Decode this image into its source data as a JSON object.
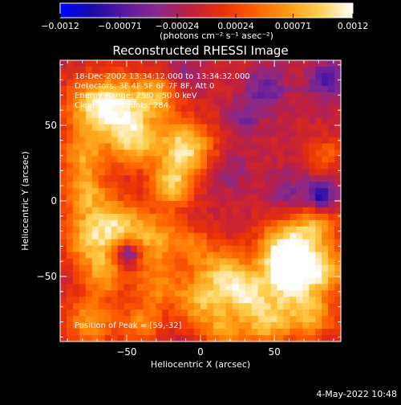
{
  "chart_data": {
    "type": "heatmap",
    "title": "Reconstructed RHESSI Image",
    "xlabel": "Heliocentric X (arcsec)",
    "ylabel": "Heliocentric Y (arcsec)",
    "xlim": [
      -95,
      95
    ],
    "ylim": [
      -93,
      93
    ],
    "x_ticks": [
      {
        "value": -50,
        "label": "−50"
      },
      {
        "value": 0,
        "label": "0"
      },
      {
        "value": 50,
        "label": "50"
      }
    ],
    "y_ticks": [
      {
        "value": -50,
        "label": "−50"
      },
      {
        "value": 0,
        "label": "0"
      },
      {
        "value": 50,
        "label": "50"
      }
    ],
    "colorbar": {
      "range": [
        -0.0012,
        0.0012
      ],
      "tick_labels": [
        "−0.0012",
        "−0.00071",
        "−0.00024",
        "0.00024",
        "0.00071",
        "0.0012"
      ],
      "tick_values": [
        -0.0012,
        -0.00071,
        -0.00024,
        0.00024,
        0.00071,
        0.0012
      ],
      "units": "(photons cm⁻² s⁻¹ asec⁻²)",
      "colors": [
        "#0000ff",
        "#1a0aa8",
        "#5a1aa0",
        "#8a2a8a",
        "#c02040",
        "#e83008",
        "#ff6000",
        "#ff9a10",
        "#ffd050",
        "#ffffff"
      ]
    },
    "annotations": [
      "18-Dec-2002 13:34:12.000 to 13:34:32.000",
      "Detectors: 3F 4F 5F 6F 7F 8F, Att 0",
      "Energy Range: 25.0 - 50.0 keV",
      "Clean     Total counts: 284."
    ],
    "peak_label": "Position of Peak = [59,-32]",
    "peak": [
      59,
      -32
    ],
    "blobs": [
      {
        "x": -72,
        "y": 62,
        "r": 14,
        "v": 0.00095
      },
      {
        "x": -50,
        "y": 62,
        "r": 14,
        "v": 0.0008
      },
      {
        "x": -28,
        "y": 70,
        "r": 10,
        "v": 0.00065
      },
      {
        "x": -10,
        "y": 35,
        "r": 13,
        "v": 0.0011
      },
      {
        "x": -45,
        "y": 38,
        "r": 12,
        "v": 0.00085
      },
      {
        "x": -80,
        "y": 30,
        "r": 11,
        "v": 0.0007
      },
      {
        "x": -78,
        "y": 5,
        "r": 11,
        "v": 0.00075
      },
      {
        "x": -20,
        "y": 10,
        "r": 10,
        "v": 0.0009
      },
      {
        "x": -75,
        "y": -25,
        "r": 13,
        "v": 0.00085
      },
      {
        "x": -55,
        "y": -15,
        "r": 12,
        "v": 0.0008
      },
      {
        "x": -30,
        "y": -25,
        "r": 12,
        "v": 0.00075
      },
      {
        "x": -65,
        "y": -48,
        "r": 10,
        "v": 0.0007
      },
      {
        "x": -30,
        "y": -55,
        "r": 12,
        "v": 0.0006
      },
      {
        "x": -75,
        "y": -80,
        "r": 12,
        "v": 0.00075
      },
      {
        "x": -40,
        "y": -82,
        "r": 10,
        "v": 0.0006
      },
      {
        "x": 0,
        "y": -65,
        "r": 12,
        "v": 0.00085
      },
      {
        "x": 15,
        "y": -45,
        "r": 11,
        "v": 0.00075
      },
      {
        "x": 30,
        "y": -60,
        "r": 11,
        "v": 0.0009
      },
      {
        "x": 59,
        "y": -32,
        "r": 14,
        "v": 0.0012
      },
      {
        "x": 60,
        "y": -50,
        "r": 12,
        "v": 0.0011
      },
      {
        "x": 45,
        "y": -80,
        "r": 12,
        "v": 0.0009
      },
      {
        "x": 75,
        "y": -75,
        "r": 12,
        "v": 0.0008
      },
      {
        "x": 85,
        "y": -45,
        "r": 10,
        "v": 0.00085
      },
      {
        "x": 80,
        "y": -15,
        "r": 10,
        "v": 0.0007
      },
      {
        "x": 15,
        "y": -85,
        "r": 10,
        "v": 0.00065
      },
      {
        "x": -5,
        "y": -30,
        "r": 9,
        "v": 0.0005
      },
      {
        "x": 85,
        "y": 30,
        "r": 8,
        "v": 0.00045
      },
      {
        "x": 30,
        "y": 55,
        "r": 8,
        "v": -0.0004
      },
      {
        "x": 60,
        "y": 5,
        "r": 10,
        "v": -0.0004
      },
      {
        "x": 85,
        "y": 80,
        "r": 9,
        "v": -0.0006
      },
      {
        "x": 82,
        "y": 2,
        "r": 7,
        "v": -0.0009
      },
      {
        "x": -50,
        "y": -35,
        "r": 6,
        "v": -0.0009
      },
      {
        "x": 20,
        "y": 20,
        "r": 9,
        "v": -0.0003
      },
      {
        "x": 45,
        "y": 75,
        "r": 10,
        "v": -0.0005
      },
      {
        "x": -10,
        "y": 85,
        "r": 8,
        "v": -0.0003
      }
    ]
  },
  "footer": {
    "timestamp": "4-May-2022 10:48"
  }
}
